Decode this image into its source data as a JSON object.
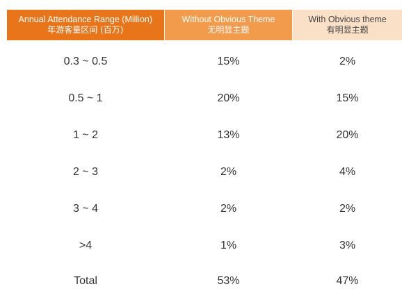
{
  "header": {
    "col1_en": "Annual Attendance Range (Million)",
    "col1_cn": "年游客量区间 (百万)",
    "col2_en": "Without Obvious Theme",
    "col2_cn": "无明显主题",
    "col3_en": "With Obvious theme",
    "col3_cn": "有明显主题"
  },
  "rows": [
    {
      "range": "0.3 ~ 0.5",
      "without": "15%",
      "with": "2%"
    },
    {
      "range": "0.5 ~ 1",
      "without": "20%",
      "with": "15%"
    },
    {
      "range": "1 ~ 2",
      "without": "13%",
      "with": "20%"
    },
    {
      "range": "2 ~ 3",
      "without": "2%",
      "with": "4%"
    },
    {
      "range": "3 ~ 4",
      "without": "2%",
      "with": "2%"
    },
    {
      "range": ">4",
      "without": "1%",
      "with": "3%"
    },
    {
      "range": "Total",
      "without": "53%",
      "with": "47%"
    }
  ],
  "colors": {
    "header1": "#e8751a",
    "header2": "#f29b4c",
    "header3": "#fbe0c8"
  }
}
